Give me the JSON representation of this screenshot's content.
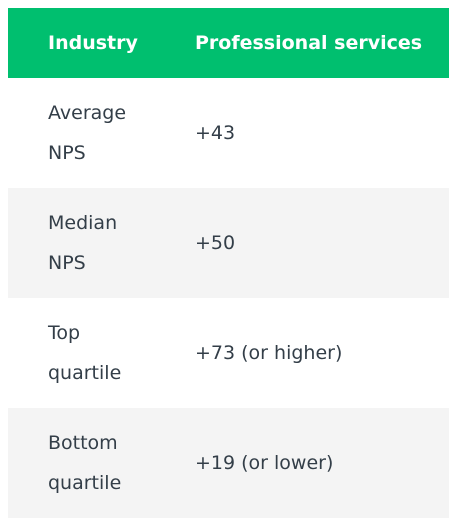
{
  "table": {
    "header": [
      "Industry",
      "Professional services"
    ],
    "rows": [
      [
        "Average NPS",
        "+43"
      ],
      [
        "Median NPS",
        "+50"
      ],
      [
        "Top quartile",
        "+73 (or higher)"
      ],
      [
        "Bottom quartile",
        "+19 (or lower)"
      ]
    ]
  }
}
